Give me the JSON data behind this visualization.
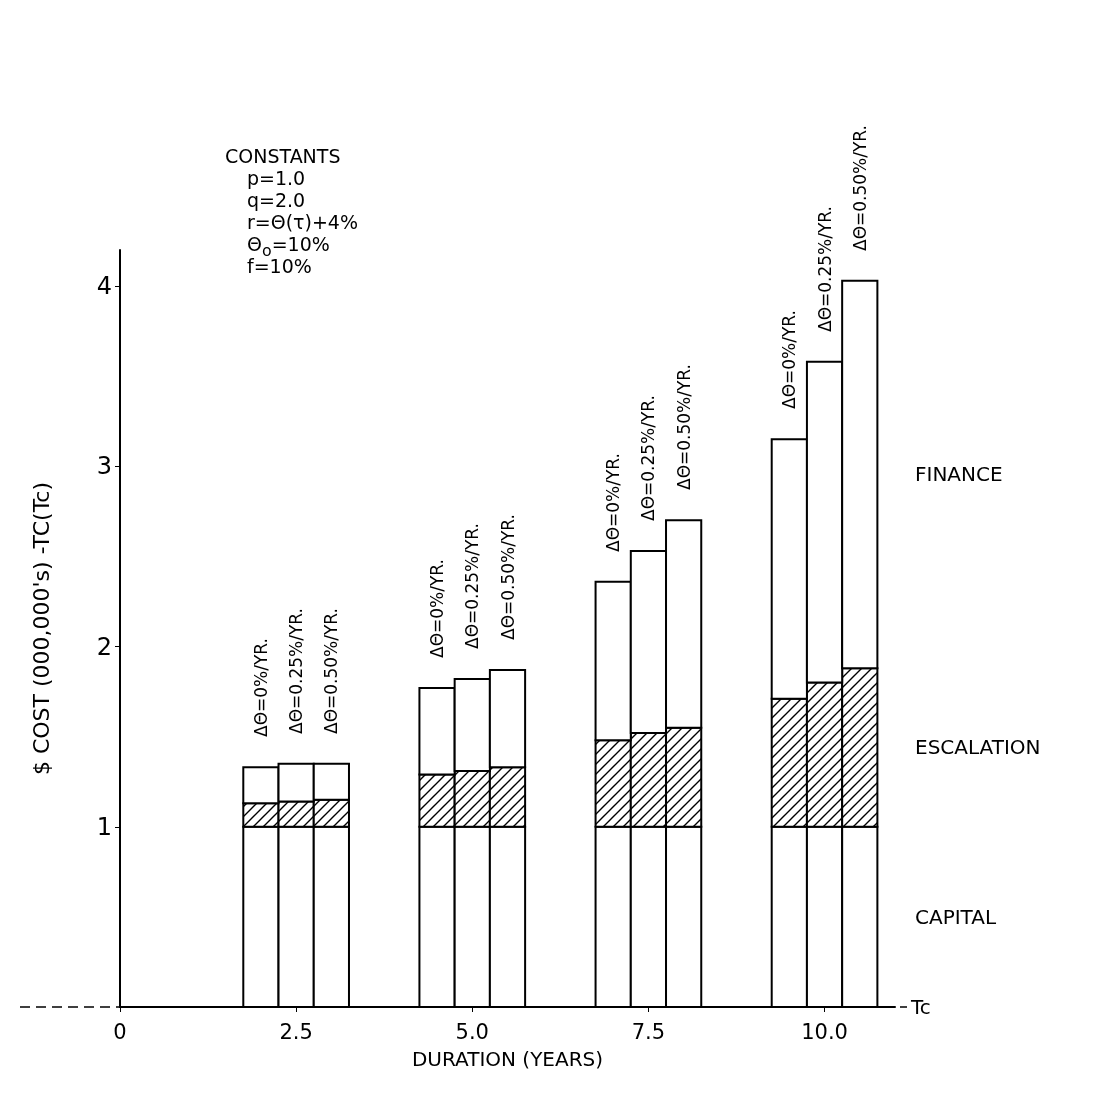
{
  "chart_data": {
    "type": "bar",
    "stacked": true,
    "xlabel": "DURATION (YEARS)",
    "ylabel": "$ COST (000,000's) -TC(Tc)",
    "xlim": [
      0,
      11
    ],
    "xticks": [
      0,
      2.5,
      {
        "value": 5,
        "label": "5.0"
      },
      7.5,
      {
        "value": 10,
        "label": "10.0"
      }
    ],
    "ylim": [
      0,
      4.2
    ],
    "yticks": [
      1,
      2,
      3,
      4
    ],
    "grid": false,
    "legend": false,
    "ref_lines": [
      {
        "axis": "y",
        "value": 0,
        "label": "Tc",
        "line_style": "dashed",
        "color": "#000000"
      }
    ],
    "series": [
      {
        "name": "CAPITAL",
        "color": "#ffffff",
        "x": [
          2,
          2.5,
          3,
          4.5,
          5,
          5.5,
          7,
          7.5,
          8,
          9.5,
          10,
          10.5
        ],
        "values": [
          1,
          1,
          1,
          1,
          1,
          1,
          1,
          1,
          1,
          1,
          1,
          1
        ]
      },
      {
        "name": "ESCALATION",
        "color": "#000000",
        "x": [
          2,
          2.5,
          3,
          4.5,
          5,
          5.5,
          7,
          7.5,
          8,
          9.5,
          10,
          10.5
        ],
        "values": [
          0.13,
          0.14,
          0.15,
          0.29,
          0.31,
          0.33,
          0.48,
          0.52,
          0.55,
          0.71,
          0.8,
          0.88
        ]
      },
      {
        "name": "FINANCE",
        "color": "#ffffff",
        "x": [
          2,
          2.5,
          3,
          4.5,
          5,
          5.5,
          7,
          7.5,
          8,
          9.5,
          10,
          10.5
        ],
        "values": [
          0.2,
          0.21,
          0.2,
          0.48,
          0.51,
          0.54,
          0.88,
          1.01,
          1.15,
          1.44,
          1.78,
          2.15
        ]
      }
    ],
    "annotations": [
      "CONSTANTS",
      "p=1.0",
      "q=2.0",
      "r=Θ(τ)+4%",
      "Θ$_{o}$=10%",
      "f=10%",
      "ΔΘ=0%/YR.",
      "ΔΘ=0.25%/YR.",
      "ΔΘ=0.50%/YR.",
      "ΔΘ=0%/YR.",
      "ΔΘ=0.25%/YR.",
      "ΔΘ=0.50%/YR.",
      "ΔΘ=0%/YR.",
      "ΔΘ=0.25%/YR.",
      "ΔΘ=0.50%/YR.",
      "ΔΘ=0%/YR.",
      "ΔΘ=0.25%/YR.",
      "ΔΘ=0.50%/YR."
    ]
  }
}
